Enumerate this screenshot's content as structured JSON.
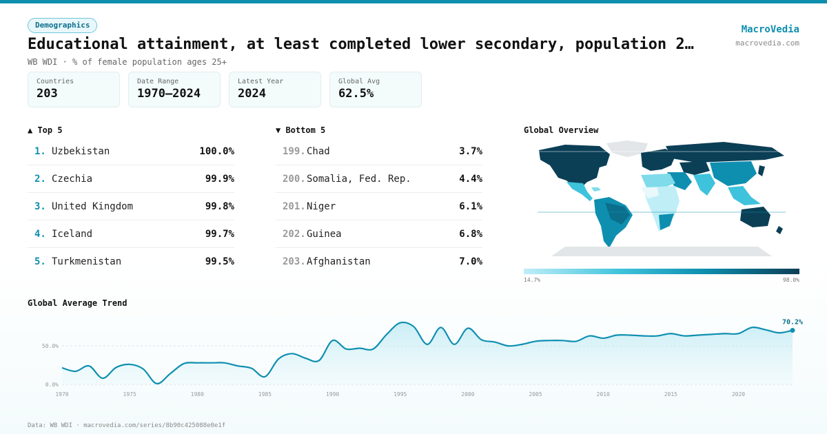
{
  "header": {
    "badge": "Demographics",
    "title": "Educational attainment, at least completed lower secondary, population 2…",
    "subtitle": "WB WDI · % of female population ages 25+",
    "brand": "MacroVedia",
    "brand_url": "macrovedia.com"
  },
  "stats": [
    {
      "label": "Countries",
      "value": "203"
    },
    {
      "label": "Date Range",
      "value": "1970–2024"
    },
    {
      "label": "Latest Year",
      "value": "2024"
    },
    {
      "label": "Global Avg",
      "value": "62.5%"
    }
  ],
  "top5": {
    "title": "▲ Top 5",
    "items": [
      {
        "rank": "1.",
        "name": "Uzbekistan",
        "value": "100.0%"
      },
      {
        "rank": "2.",
        "name": "Czechia",
        "value": "99.9%"
      },
      {
        "rank": "3.",
        "name": "United Kingdom",
        "value": "99.8%"
      },
      {
        "rank": "4.",
        "name": "Iceland",
        "value": "99.7%"
      },
      {
        "rank": "5.",
        "name": "Turkmenistan",
        "value": "99.5%"
      }
    ]
  },
  "bottom5": {
    "title": "▼ Bottom 5",
    "items": [
      {
        "rank": "199.",
        "name": "Chad",
        "value": "3.7%"
      },
      {
        "rank": "200.",
        "name": "Somalia, Fed. Rep.",
        "value": "4.4%"
      },
      {
        "rank": "201.",
        "name": "Niger",
        "value": "6.1%"
      },
      {
        "rank": "202.",
        "name": "Guinea",
        "value": "6.8%"
      },
      {
        "rank": "203.",
        "name": "Afghanistan",
        "value": "7.0%"
      }
    ]
  },
  "map": {
    "title": "Global Overview",
    "legend_min": "14.7%",
    "legend_max": "98.0%",
    "colors": {
      "low": "#bfeef7",
      "mid": "#0e8fb0",
      "high": "#0b3f56",
      "nodata": "#e3e6e8"
    }
  },
  "trend": {
    "title": "Global Average Trend",
    "last_label": "70.2%",
    "line_color": "#0e8fb0"
  },
  "chart_data": {
    "type": "area",
    "title": "Global Average Trend",
    "x": [
      1970,
      1971,
      1972,
      1973,
      1974,
      1975,
      1976,
      1977,
      1978,
      1979,
      1980,
      1981,
      1982,
      1983,
      1984,
      1985,
      1986,
      1987,
      1988,
      1989,
      1990,
      1991,
      1992,
      1993,
      1994,
      1995,
      1996,
      1997,
      1998,
      1999,
      2000,
      2001,
      2002,
      2003,
      2004,
      2005,
      2006,
      2007,
      2008,
      2009,
      2010,
      2011,
      2012,
      2013,
      2014,
      2015,
      2016,
      2017,
      2018,
      2019,
      2020,
      2021,
      2022,
      2023,
      2024
    ],
    "y": [
      21.5,
      17,
      24,
      8,
      22,
      26,
      20,
      1,
      14,
      27,
      28,
      28,
      28,
      24,
      21,
      10,
      33,
      40,
      34,
      31,
      57,
      46,
      47,
      46,
      65,
      80,
      75,
      52,
      74,
      52,
      73,
      58,
      55,
      50,
      52,
      56,
      57,
      57,
      56,
      63,
      60,
      64,
      64,
      63,
      63,
      66,
      63,
      64,
      65,
      66,
      66,
      74,
      71,
      67,
      70.2
    ],
    "yticks": [
      0,
      50
    ],
    "ytick_labels": [
      "0.0%",
      "50.0%"
    ],
    "xticks": [
      1970,
      1975,
      1980,
      1985,
      1990,
      1995,
      2000,
      2005,
      2010,
      2015,
      2020
    ],
    "ylim": [
      0,
      85
    ],
    "grid": true
  },
  "footer": "Data: WB WDI · macrovedia.com/series/8b90c425088e0e1f"
}
